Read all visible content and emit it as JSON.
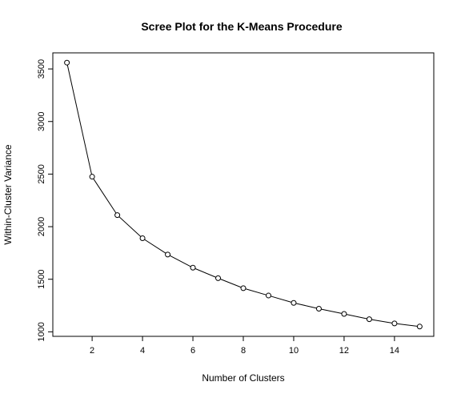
{
  "chart_data": {
    "type": "line",
    "title": "Scree Plot for the K-Means Procedure",
    "xlabel": "Number of Clusters",
    "ylabel": "Within-Cluster Variance",
    "x": [
      1,
      2,
      3,
      4,
      5,
      6,
      7,
      8,
      9,
      10,
      11,
      12,
      13,
      14,
      15
    ],
    "series": [
      {
        "values": [
          3560,
          2475,
          2110,
          1890,
          1735,
          1610,
          1510,
          1415,
          1345,
          1275,
          1220,
          1170,
          1120,
          1080,
          1050
        ]
      }
    ],
    "xlim": [
      0.44,
      15.56
    ],
    "ylim": [
      957,
      3653
    ],
    "xticks": [
      2,
      4,
      6,
      8,
      10,
      12,
      14
    ],
    "yticks": [
      1000,
      1500,
      2000,
      2500,
      3000,
      3500
    ],
    "markers": "open-circle",
    "grid": false,
    "legend": false,
    "colors": {
      "line": "#000000",
      "marker_fill": "#ffffff"
    }
  }
}
